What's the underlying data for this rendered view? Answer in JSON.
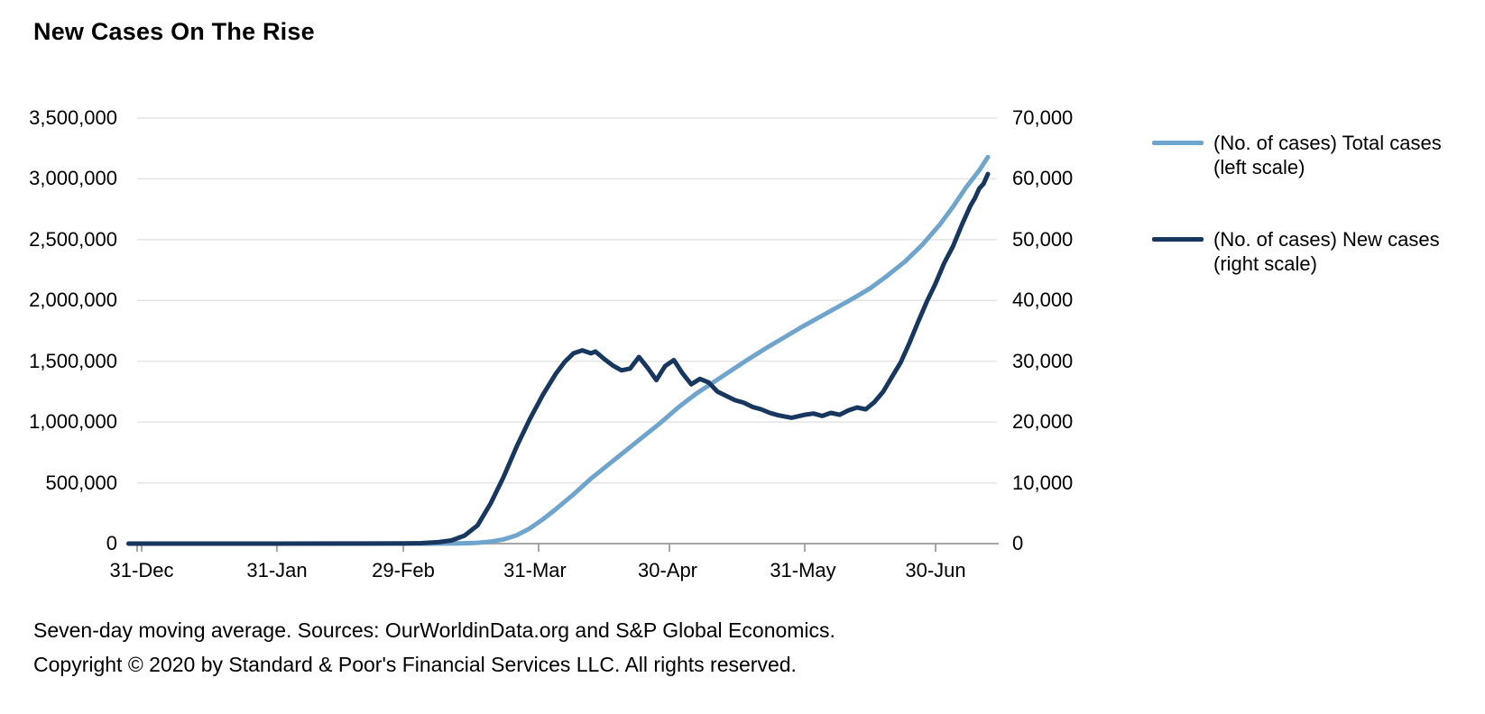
{
  "title": "New Cases On The Rise",
  "footnotes": {
    "source": "Seven-day moving average. Sources: OurWorldinData.org and S&P Global Economics.",
    "copyright": "Copyright © 2020 by Standard & Poor's Financial Services LLC. All rights reserved."
  },
  "legend": {
    "items": [
      {
        "line1": "(No. of cases) Total cases",
        "line2": "(left scale)"
      },
      {
        "line1": "(No. of cases) New cases",
        "line2": "(right scale)"
      }
    ]
  },
  "colors": {
    "total_cases_line": "#6FA4CC",
    "new_cases_line": "#17375E",
    "gridline": "#E4E4E4",
    "axis_line": "#A6A6A6",
    "text": "#000000"
  },
  "chart_data": {
    "type": "line",
    "title": "New Cases On The Rise",
    "grid": "horizontal",
    "legend_position": "right",
    "x_axis": {
      "start": "2019-12-31",
      "end": "2020-07-12",
      "tick_labels": [
        "31-Dec",
        "31-Jan",
        "29-Feb",
        "31-Mar",
        "30-Apr",
        "31-May",
        "30-Jun"
      ],
      "tick_dates": [
        "2019-12-31",
        "2020-01-31",
        "2020-02-29",
        "2020-03-31",
        "2020-04-30",
        "2020-05-31",
        "2020-06-30"
      ]
    },
    "left_axis": {
      "min": 0,
      "max": 3500000,
      "ticks": [
        "3,500,000",
        "3,000,000",
        "2,500,000",
        "2,000,000",
        "1,500,000",
        "1,000,000",
        "500,000",
        "0"
      ]
    },
    "right_axis": {
      "min": 0,
      "max": 70000,
      "ticks": [
        "70,000",
        "60,000",
        "50,000",
        "40,000",
        "30,000",
        "20,000",
        "10,000",
        "0"
      ]
    },
    "series": [
      {
        "name": "(No. of cases) Total cases (left scale)",
        "axis": "left",
        "color": "#6FA4CC",
        "points": [
          [
            "2019-12-28",
            0
          ],
          [
            "2020-01-15",
            0
          ],
          [
            "2020-01-31",
            7
          ],
          [
            "2020-02-15",
            15
          ],
          [
            "2020-02-25",
            50
          ],
          [
            "2020-03-01",
            80
          ],
          [
            "2020-03-05",
            230
          ],
          [
            "2020-03-09",
            700
          ],
          [
            "2020-03-13",
            2200
          ],
          [
            "2020-03-17",
            6500
          ],
          [
            "2020-03-20",
            16000
          ],
          [
            "2020-03-23",
            35000
          ],
          [
            "2020-03-26",
            69000
          ],
          [
            "2020-03-29",
            125000
          ],
          [
            "2020-04-01",
            200000
          ],
          [
            "2020-04-04",
            285000
          ],
          [
            "2020-04-08",
            405000
          ],
          [
            "2020-04-12",
            535000
          ],
          [
            "2020-04-16",
            650000
          ],
          [
            "2020-04-20",
            765000
          ],
          [
            "2020-04-24",
            880000
          ],
          [
            "2020-04-28",
            995000
          ],
          [
            "2020-05-02",
            1120000
          ],
          [
            "2020-05-06",
            1230000
          ],
          [
            "2020-05-10",
            1325000
          ],
          [
            "2020-05-14",
            1420000
          ],
          [
            "2020-05-18",
            1515000
          ],
          [
            "2020-05-22",
            1605000
          ],
          [
            "2020-05-26",
            1690000
          ],
          [
            "2020-05-30",
            1775000
          ],
          [
            "2020-06-03",
            1855000
          ],
          [
            "2020-06-07",
            1935000
          ],
          [
            "2020-06-11",
            2015000
          ],
          [
            "2020-06-15",
            2100000
          ],
          [
            "2020-06-19",
            2205000
          ],
          [
            "2020-06-23",
            2320000
          ],
          [
            "2020-06-27",
            2460000
          ],
          [
            "2020-07-01",
            2625000
          ],
          [
            "2020-07-04",
            2770000
          ],
          [
            "2020-07-07",
            2930000
          ],
          [
            "2020-07-10",
            3070000
          ],
          [
            "2020-07-12",
            3180000
          ]
        ]
      },
      {
        "name": "(No. of cases) New cases (right scale)",
        "axis": "right",
        "color": "#17375E",
        "points": [
          [
            "2019-12-28",
            0
          ],
          [
            "2020-01-31",
            0
          ],
          [
            "2020-02-20",
            15
          ],
          [
            "2020-02-29",
            25
          ],
          [
            "2020-03-04",
            75
          ],
          [
            "2020-03-08",
            230
          ],
          [
            "2020-03-11",
            520
          ],
          [
            "2020-03-14",
            1300
          ],
          [
            "2020-03-17",
            3000
          ],
          [
            "2020-03-20",
            6600
          ],
          [
            "2020-03-23",
            11000
          ],
          [
            "2020-03-26",
            16000
          ],
          [
            "2020-03-29",
            20500
          ],
          [
            "2020-04-01",
            24500
          ],
          [
            "2020-04-04",
            28000
          ],
          [
            "2020-04-06",
            29900
          ],
          [
            "2020-04-08",
            31300
          ],
          [
            "2020-04-10",
            31800
          ],
          [
            "2020-04-12",
            31300
          ],
          [
            "2020-04-13",
            31600
          ],
          [
            "2020-04-15",
            30400
          ],
          [
            "2020-04-17",
            29300
          ],
          [
            "2020-04-19",
            28500
          ],
          [
            "2020-04-21",
            28800
          ],
          [
            "2020-04-23",
            30700
          ],
          [
            "2020-04-25",
            28900
          ],
          [
            "2020-04-27",
            26900
          ],
          [
            "2020-04-29",
            29200
          ],
          [
            "2020-05-01",
            30200
          ],
          [
            "2020-05-03",
            28000
          ],
          [
            "2020-05-05",
            26200
          ],
          [
            "2020-05-07",
            27100
          ],
          [
            "2020-05-09",
            26500
          ],
          [
            "2020-05-11",
            25000
          ],
          [
            "2020-05-13",
            24300
          ],
          [
            "2020-05-15",
            23600
          ],
          [
            "2020-05-17",
            23200
          ],
          [
            "2020-05-19",
            22500
          ],
          [
            "2020-05-21",
            22100
          ],
          [
            "2020-05-23",
            21500
          ],
          [
            "2020-05-25",
            21100
          ],
          [
            "2020-05-28",
            20700
          ],
          [
            "2020-05-31",
            21200
          ],
          [
            "2020-06-02",
            21400
          ],
          [
            "2020-06-04",
            21000
          ],
          [
            "2020-06-06",
            21500
          ],
          [
            "2020-06-08",
            21200
          ],
          [
            "2020-06-10",
            21900
          ],
          [
            "2020-06-12",
            22400
          ],
          [
            "2020-06-14",
            22100
          ],
          [
            "2020-06-16",
            23300
          ],
          [
            "2020-06-18",
            25000
          ],
          [
            "2020-06-20",
            27400
          ],
          [
            "2020-06-22",
            29800
          ],
          [
            "2020-06-24",
            33000
          ],
          [
            "2020-06-26",
            36500
          ],
          [
            "2020-06-28",
            39800
          ],
          [
            "2020-06-30",
            42800
          ],
          [
            "2020-07-02",
            46200
          ],
          [
            "2020-07-04",
            48900
          ],
          [
            "2020-07-06",
            52400
          ],
          [
            "2020-07-08",
            55600
          ],
          [
            "2020-07-09",
            56800
          ],
          [
            "2020-07-10",
            58400
          ],
          [
            "2020-07-11",
            59200
          ],
          [
            "2020-07-12",
            60800
          ]
        ]
      }
    ]
  }
}
